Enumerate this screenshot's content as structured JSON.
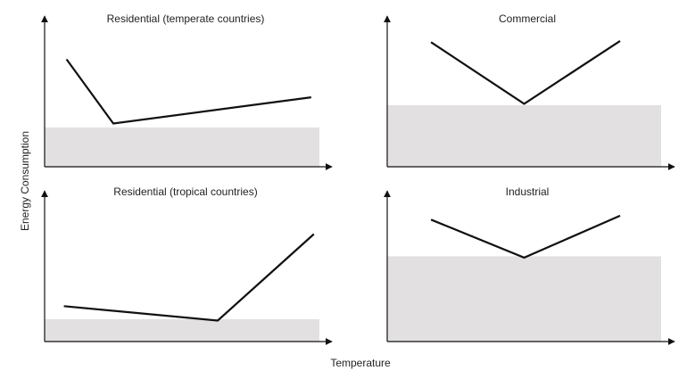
{
  "figure": {
    "xlabel": "Temperature",
    "ylabel": "Energy Consumption",
    "colors": {
      "line": "#111111",
      "axis": "#111111",
      "baseline_fill": "#e2e0e0"
    }
  },
  "chart_data": [
    {
      "type": "line",
      "title": "Residential (temperate countries)",
      "x": [
        8,
        25,
        97
      ],
      "values": [
        82,
        33,
        53
      ],
      "baseload": 30,
      "xlim": [
        0,
        100
      ],
      "ylim": [
        0,
        100
      ],
      "grid": false
    },
    {
      "type": "line",
      "title": "Commercial",
      "x": [
        16,
        50,
        85
      ],
      "values": [
        95,
        48,
        96
      ],
      "baseload": 47,
      "xlim": [
        0,
        100
      ],
      "ylim": [
        0,
        100
      ],
      "grid": false
    },
    {
      "type": "line",
      "title": "Residential (tropical countries)",
      "x": [
        7,
        63,
        98
      ],
      "values": [
        27,
        16,
        82
      ],
      "baseload": 17,
      "xlim": [
        0,
        100
      ],
      "ylim": [
        0,
        100
      ],
      "grid": false
    },
    {
      "type": "line",
      "title": "Industrial",
      "x": [
        16,
        50,
        85
      ],
      "values": [
        93,
        64,
        96
      ],
      "baseload": 65,
      "xlim": [
        0,
        100
      ],
      "ylim": [
        0,
        100
      ],
      "grid": false
    }
  ]
}
